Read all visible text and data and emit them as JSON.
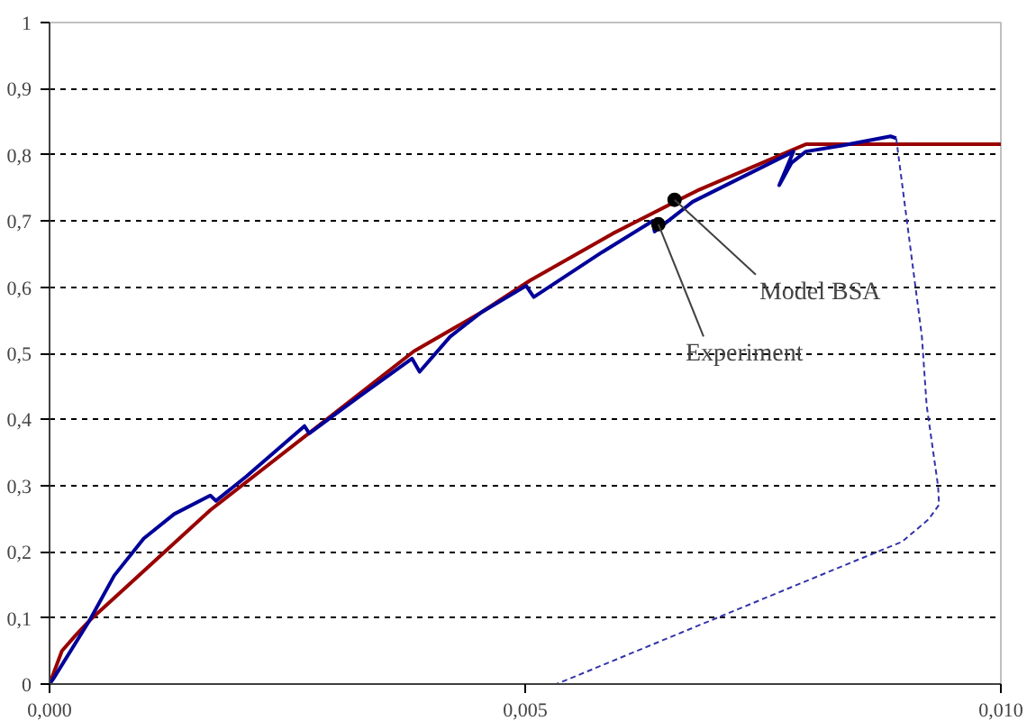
{
  "chart_data": {
    "type": "line",
    "xlim": [
      0,
      0.01
    ],
    "ylim": [
      0,
      1
    ],
    "xticks": [
      {
        "value": 0,
        "label": "0,000"
      },
      {
        "value": 0.005,
        "label": "0,005"
      },
      {
        "value": 0.01,
        "label": "0,010"
      }
    ],
    "yticks": [
      0,
      {
        "value": 0.1,
        "label": "0,1"
      },
      {
        "value": 0.2,
        "label": "0,2"
      },
      {
        "value": 0.3,
        "label": "0,3"
      },
      {
        "value": 0.4,
        "label": "0,4"
      },
      {
        "value": 0.5,
        "label": "0,5"
      },
      {
        "value": 0.6,
        "label": "0,6"
      },
      {
        "value": 0.7,
        "label": "0,7"
      },
      {
        "value": 0.8,
        "label": "0,8"
      },
      {
        "value": 0.9,
        "label": "0,9"
      },
      1
    ],
    "grid": "y",
    "marker": "none",
    "series": [
      {
        "color": "#990000",
        "line_style": "solid",
        "x": [
          0,
          0.00013,
          0.00027,
          0.00042,
          0.00074,
          0.00169,
          0.00277,
          0.00383,
          0.00454,
          0.00505,
          0.00592,
          0.00681,
          0.00782,
          0.00795,
          0.01
        ],
        "values": [
          0,
          0.05,
          0.073,
          0.096,
          0.138,
          0.263,
          0.384,
          0.503,
          0.562,
          0.61,
          0.681,
          0.746,
          0.808,
          0.816,
          0.816
        ]
      },
      {
        "color": "#000099",
        "line_style": "solid",
        "x": [
          0,
          4e-05,
          0.00042,
          0.00068,
          0.00099,
          0.00131,
          0.00169,
          0.00175,
          0.00207,
          0.00268,
          0.00273,
          0.00326,
          0.00381,
          0.00389,
          0.00421,
          0.00454,
          0.00501,
          0.00509,
          0.00581,
          0.00634,
          0.00636,
          0.00676,
          0.00782,
          0.00767,
          0.0078,
          0.00795,
          0.00833,
          0.00884,
          0.0089
        ],
        "values": [
          0,
          0.008,
          0.096,
          0.164,
          0.22,
          0.257,
          0.285,
          0.277,
          0.314,
          0.39,
          0.379,
          0.435,
          0.492,
          0.472,
          0.525,
          0.562,
          0.602,
          0.585,
          0.653,
          0.7,
          0.684,
          0.729,
          0.805,
          0.754,
          0.788,
          0.805,
          0.814,
          0.828,
          0.825
        ]
      },
      {
        "color": "#3333aa",
        "line_style": "dashed",
        "x": [
          0.0089,
          0.00917,
          0.00922,
          0.00934,
          0.00935,
          0.00924,
          0.00896,
          0.00833,
          0.00533
        ],
        "values": [
          0.825,
          0.525,
          0.421,
          0.299,
          0.271,
          0.249,
          0.215,
          0.178,
          0
        ]
      }
    ],
    "annotations": [
      {
        "text": "Model BSA",
        "x": 0.00657,
        "y": 0.732
      },
      {
        "text": "Experiment",
        "x": 0.0064,
        "y": 0.695
      }
    ]
  }
}
